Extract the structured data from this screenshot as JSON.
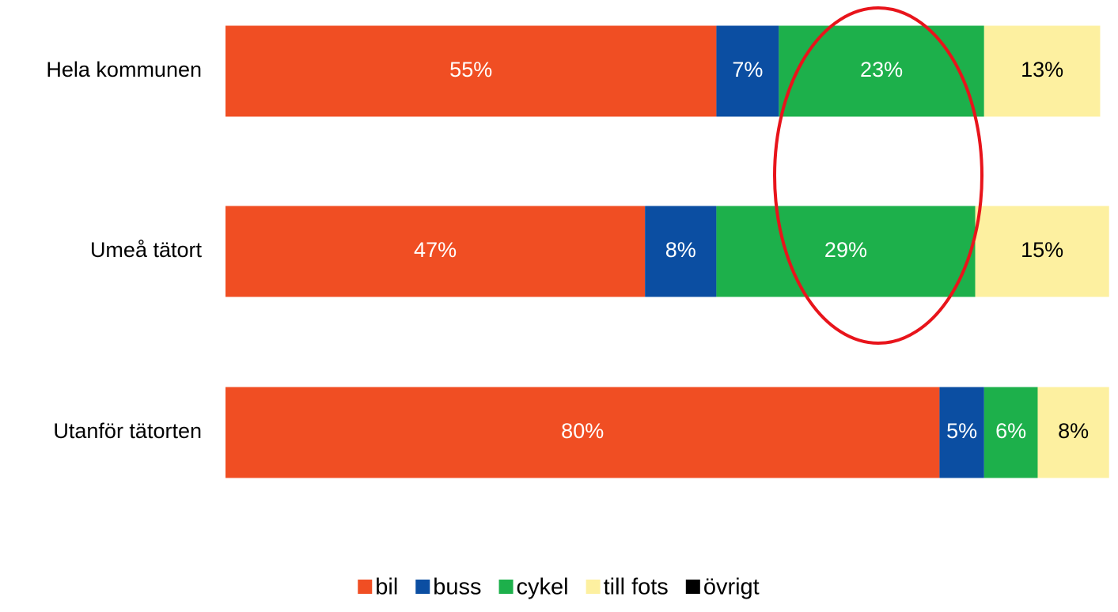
{
  "chart_data": {
    "type": "stacked_bar_horizontal",
    "categories": [
      "Hela kommunen",
      "Umeå tätort",
      "Utanför tätorten"
    ],
    "series": [
      {
        "name": "bil",
        "color": "#f04e23",
        "values": [
          55,
          47,
          80
        ],
        "value_labels": [
          "55%",
          "47%",
          "80%"
        ]
      },
      {
        "name": "buss",
        "color": "#0b4ea2",
        "values": [
          7,
          8,
          5
        ],
        "value_labels": [
          "7%",
          "8%",
          "5%"
        ]
      },
      {
        "name": "cykel",
        "color": "#1db04b",
        "values": [
          23,
          29,
          6
        ],
        "value_labels": [
          "23%",
          "29%",
          "6%"
        ]
      },
      {
        "name": "till fots",
        "color": "#fdf0a0",
        "values": [
          13,
          15,
          8
        ],
        "value_labels": [
          "13%",
          "15%",
          "8%"
        ]
      },
      {
        "name": "övrigt",
        "color": "#000000",
        "values": [
          0,
          0,
          0
        ]
      }
    ],
    "xlim": [
      0,
      100
    ],
    "legend": "bottom"
  }
}
